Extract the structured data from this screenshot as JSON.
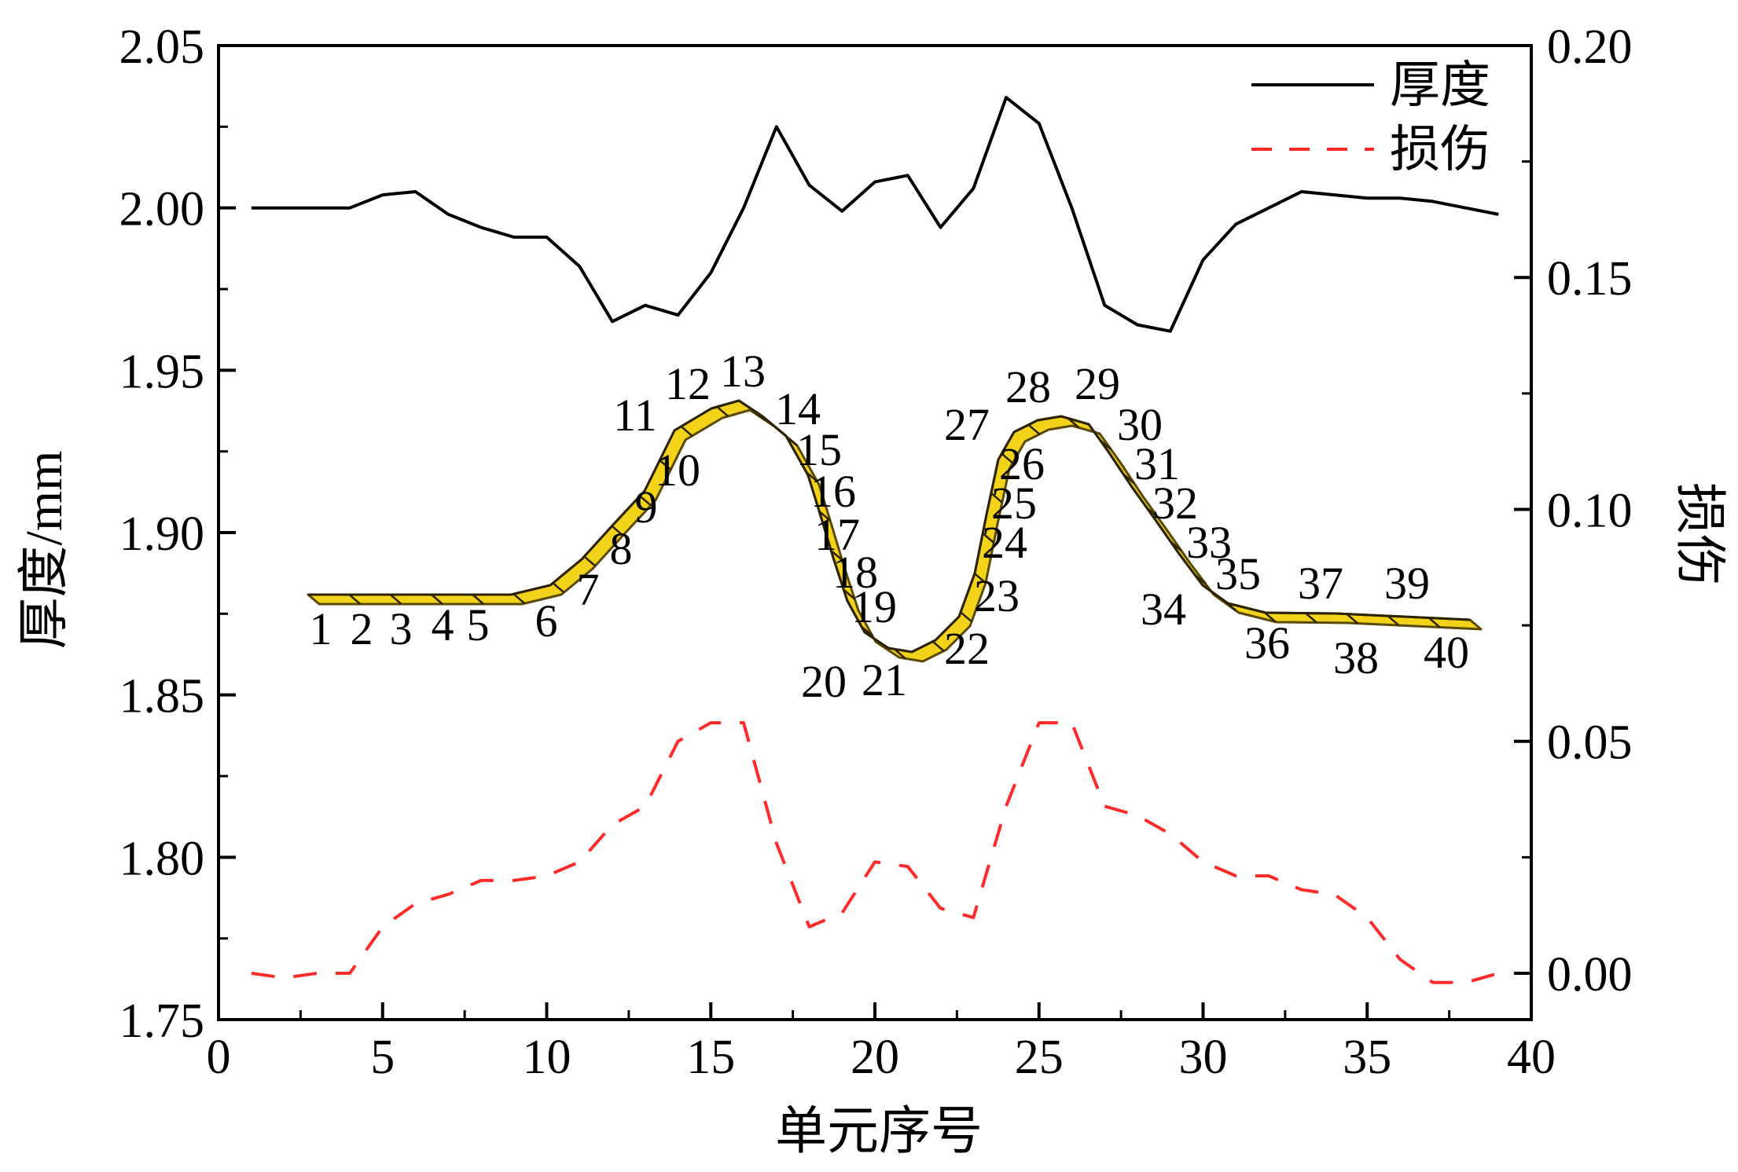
{
  "chart_data": {
    "type": "line",
    "xlabel": "单元序号",
    "ylabel_left": "厚度/mm",
    "ylabel_right": "损伤",
    "xlim": [
      0,
      40
    ],
    "ylim_left": [
      1.75,
      2.05
    ],
    "ylim_right": [
      -0.01,
      0.2
    ],
    "x_ticks": [
      0,
      5,
      10,
      15,
      20,
      25,
      30,
      35,
      40
    ],
    "x_tick_labels": [
      "0",
      "5",
      "10",
      "15",
      "20",
      "25",
      "30",
      "35",
      "40"
    ],
    "y_left_ticks": [
      1.75,
      1.8,
      1.85,
      1.9,
      1.95,
      2.0,
      2.05
    ],
    "y_left_tick_labels": [
      "1.75",
      "1.80",
      "1.85",
      "1.90",
      "1.95",
      "2.00",
      "2.05"
    ],
    "y_right_ticks": [
      0.0,
      0.05,
      0.1,
      0.15,
      0.2
    ],
    "y_right_tick_labels": [
      "0.00",
      "0.05",
      "0.10",
      "0.15",
      "0.20"
    ],
    "legend": {
      "position": "top-right",
      "entries": [
        "厚度",
        "损伤"
      ]
    },
    "series": [
      {
        "name": "厚度",
        "axis": "left",
        "color": "#000000",
        "style": "solid",
        "x": [
          1,
          2,
          3,
          4,
          5,
          6,
          7,
          8,
          9,
          10,
          11,
          12,
          13,
          14,
          15,
          16,
          17,
          18,
          19,
          20,
          21,
          22,
          23,
          24,
          25,
          26,
          27,
          28,
          29,
          30,
          31,
          32,
          33,
          34,
          35,
          36,
          37,
          38,
          39
        ],
        "values": [
          2.0,
          2.0,
          2.0,
          2.0,
          2.004,
          2.005,
          1.998,
          1.994,
          1.991,
          1.991,
          1.982,
          1.965,
          1.97,
          1.967,
          1.98,
          2.0,
          2.025,
          2.007,
          1.999,
          2.008,
          2.01,
          1.994,
          2.006,
          2.034,
          2.026,
          2.0,
          1.97,
          1.964,
          1.962,
          1.984,
          1.995,
          2.0,
          2.005,
          2.004,
          2.003,
          2.003,
          2.002,
          2.0,
          1.998
        ]
      },
      {
        "name": "损伤",
        "axis": "right",
        "color": "#ff2a2a",
        "style": "dashed",
        "x": [
          1,
          2,
          3,
          4,
          5,
          6,
          7,
          8,
          9,
          10,
          11,
          12,
          13,
          14,
          15,
          16,
          17,
          18,
          19,
          20,
          21,
          22,
          23,
          24,
          25,
          26,
          27,
          28,
          29,
          30,
          31,
          32,
          33,
          34,
          35,
          36,
          37,
          38,
          39
        ],
        "values": [
          0.0,
          -0.001,
          0.0,
          0.0,
          0.01,
          0.015,
          0.017,
          0.02,
          0.02,
          0.021,
          0.024,
          0.032,
          0.036,
          0.05,
          0.054,
          0.054,
          0.028,
          0.01,
          0.013,
          0.024,
          0.023,
          0.014,
          0.012,
          0.036,
          0.054,
          0.054,
          0.036,
          0.034,
          0.03,
          0.024,
          0.021,
          0.021,
          0.018,
          0.017,
          0.012,
          0.003,
          -0.002,
          -0.002,
          0.0
        ]
      }
    ],
    "inset": {
      "element_labels": [
        "1",
        "2",
        "3",
        "4",
        "5",
        "6",
        "7",
        "8",
        "9",
        "10",
        "11",
        "12",
        "13",
        "14",
        "15",
        "16",
        "17",
        "18",
        "19",
        "20",
        "21",
        "22",
        "23",
        "24",
        "25",
        "26",
        "27",
        "28",
        "29",
        "30",
        "31",
        "32",
        "33",
        "34",
        "35",
        "36",
        "37",
        "38",
        "39",
        "40"
      ],
      "fill_color": "#f3d21a",
      "edge_color": "#5a4a00"
    }
  }
}
